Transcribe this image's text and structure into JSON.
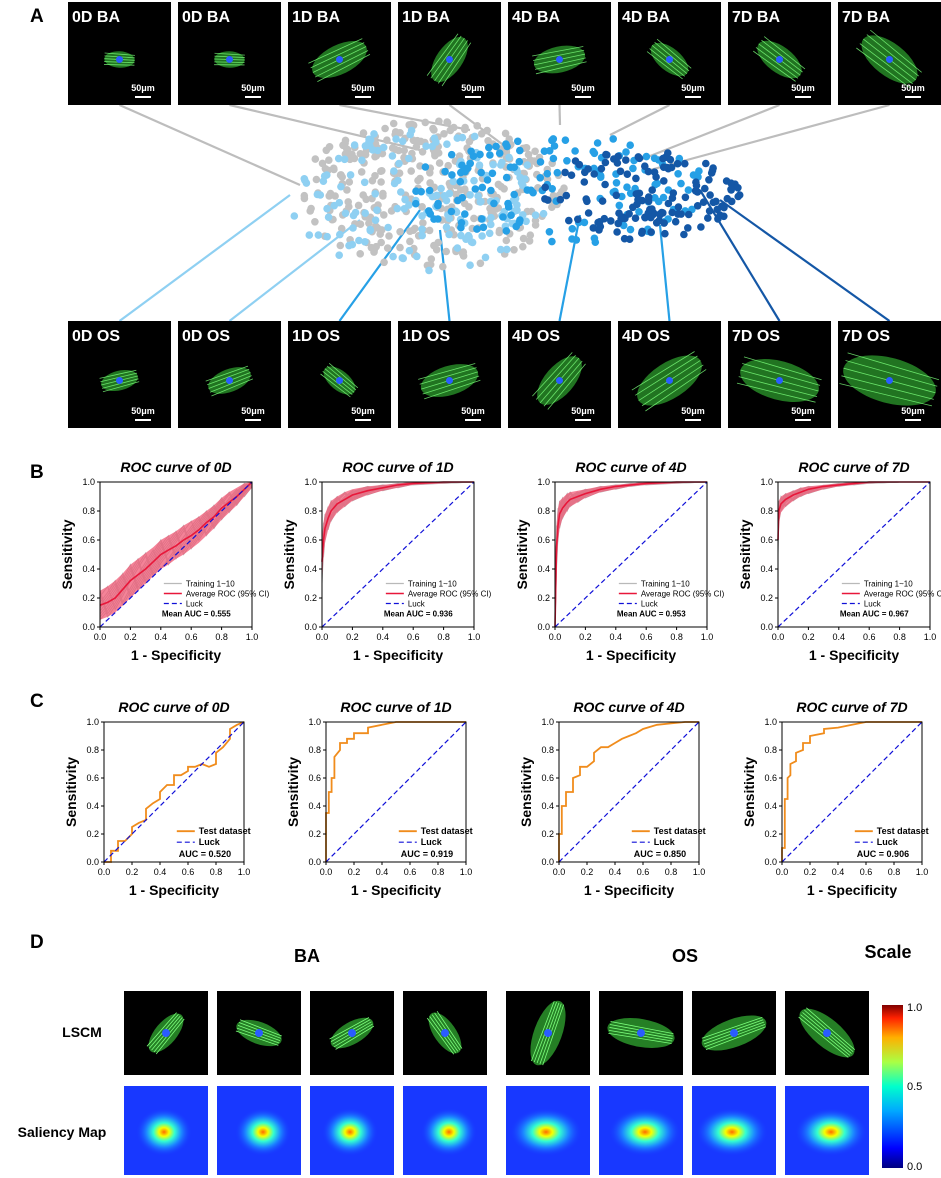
{
  "panels": {
    "a": "A",
    "b": "B",
    "c": "C",
    "d": "D"
  },
  "colors": {
    "gray": "#c2c2c2",
    "light_blue": "#8fd0f2",
    "mid_blue": "#26a0e6",
    "dark_blue": "#1457a6",
    "roc_red": "#e8173a",
    "ci_fill": "#f05a76",
    "luck": "#1010d8",
    "test_orange": "#f08c1c",
    "cell_green": "#3dd43d",
    "nucleus": "#2a5cff"
  },
  "panel_a": {
    "top_images": [
      {
        "label": "0D BA",
        "scale": "50μm"
      },
      {
        "label": "0D BA",
        "scale": "50μm"
      },
      {
        "label": "1D BA",
        "scale": "50μm"
      },
      {
        "label": "1D BA",
        "scale": "50μm"
      },
      {
        "label": "4D BA",
        "scale": "50μm"
      },
      {
        "label": "4D BA",
        "scale": "50μm"
      },
      {
        "label": "7D BA",
        "scale": "50μm"
      },
      {
        "label": "7D BA",
        "scale": "50μm"
      }
    ],
    "bottom_images": [
      {
        "label": "0D OS",
        "scale": "50μm"
      },
      {
        "label": "0D OS",
        "scale": "50μm"
      },
      {
        "label": "1D OS",
        "scale": "50μm"
      },
      {
        "label": "1D OS",
        "scale": "50μm"
      },
      {
        "label": "4D OS",
        "scale": "50μm"
      },
      {
        "label": "4D OS",
        "scale": "50μm"
      },
      {
        "label": "7D OS",
        "scale": "50μm"
      },
      {
        "label": "7D OS",
        "scale": "50μm"
      }
    ]
  },
  "chart_data": [
    {
      "panel": "B",
      "type": "line",
      "title": "ROC curve of 0D",
      "xlabel": "1 - Specificity",
      "ylabel": "Sensitivity",
      "xlim": [
        0,
        1
      ],
      "ylim": [
        0,
        1
      ],
      "ticks": [
        "0.0",
        "0.2",
        "0.4",
        "0.6",
        "0.8",
        "1.0"
      ],
      "legend": [
        "Training 1~10",
        "Average ROC (95% CI)",
        "Luck"
      ],
      "auc_text": "Mean AUC = 0.555",
      "series": [
        {
          "name": "Average ROC (95% CI)",
          "x": [
            0,
            0.05,
            0.1,
            0.15,
            0.2,
            0.25,
            0.3,
            0.35,
            0.4,
            0.45,
            0.5,
            0.55,
            0.6,
            0.65,
            0.7,
            0.75,
            0.8,
            0.85,
            0.9,
            0.95,
            1.0
          ],
          "y": [
            0.15,
            0.17,
            0.2,
            0.26,
            0.32,
            0.36,
            0.4,
            0.45,
            0.5,
            0.53,
            0.56,
            0.6,
            0.63,
            0.67,
            0.72,
            0.76,
            0.82,
            0.86,
            0.9,
            0.95,
            1.0
          ],
          "lower": [
            0.05,
            0.07,
            0.1,
            0.15,
            0.2,
            0.25,
            0.3,
            0.35,
            0.4,
            0.43,
            0.47,
            0.5,
            0.54,
            0.58,
            0.63,
            0.68,
            0.74,
            0.79,
            0.84,
            0.9,
            0.96
          ],
          "upper": [
            0.25,
            0.28,
            0.32,
            0.37,
            0.43,
            0.47,
            0.51,
            0.55,
            0.6,
            0.63,
            0.66,
            0.7,
            0.73,
            0.76,
            0.8,
            0.84,
            0.89,
            0.93,
            0.96,
            0.99,
            1.0
          ]
        }
      ]
    },
    {
      "panel": "B",
      "type": "line",
      "title": "ROC curve of 1D",
      "xlabel": "1 - Specificity",
      "ylabel": "Sensitivity",
      "xlim": [
        0,
        1
      ],
      "ylim": [
        0,
        1
      ],
      "ticks": [
        "0.0",
        "0.2",
        "0.4",
        "0.6",
        "0.8",
        "1.0"
      ],
      "legend": [
        "Training 1~10",
        "Average ROC (95% CI)",
        "Luck"
      ],
      "auc_text": "Mean AUC = 0.936",
      "series": [
        {
          "name": "Average ROC (95% CI)",
          "x": [
            0,
            0.01,
            0.02,
            0.04,
            0.06,
            0.1,
            0.15,
            0.2,
            0.3,
            0.4,
            0.5,
            0.6,
            0.8,
            1.0
          ],
          "y": [
            0.45,
            0.6,
            0.68,
            0.75,
            0.8,
            0.85,
            0.88,
            0.91,
            0.94,
            0.96,
            0.98,
            0.99,
            1.0,
            1.0
          ],
          "lower": [
            0.3,
            0.48,
            0.58,
            0.67,
            0.73,
            0.79,
            0.83,
            0.87,
            0.91,
            0.94,
            0.96,
            0.98,
            0.99,
            1.0
          ],
          "upper": [
            0.6,
            0.72,
            0.78,
            0.83,
            0.87,
            0.9,
            0.93,
            0.95,
            0.97,
            0.98,
            0.99,
            1.0,
            1.0,
            1.0
          ]
        }
      ]
    },
    {
      "panel": "B",
      "type": "line",
      "title": "ROC curve of 4D",
      "xlabel": "1 - Specificity",
      "ylabel": "Sensitivity",
      "xlim": [
        0,
        1
      ],
      "ylim": [
        0,
        1
      ],
      "ticks": [
        "0.0",
        "0.2",
        "0.4",
        "0.6",
        "0.8",
        "1.0"
      ],
      "legend": [
        "Training 1~10",
        "Average ROC (95% CI)",
        "Luck"
      ],
      "auc_text": "Mean AUC = 0.953",
      "series": [
        {
          "name": "Average ROC (95% CI)",
          "x": [
            0,
            0.01,
            0.02,
            0.03,
            0.05,
            0.08,
            0.1,
            0.15,
            0.2,
            0.3,
            0.4,
            0.5,
            0.6,
            0.8,
            1.0
          ],
          "y": [
            0.0,
            0.55,
            0.7,
            0.78,
            0.82,
            0.86,
            0.88,
            0.9,
            0.92,
            0.95,
            0.97,
            0.98,
            0.99,
            1.0,
            1.0
          ],
          "lower": [
            0.0,
            0.4,
            0.58,
            0.68,
            0.75,
            0.8,
            0.83,
            0.86,
            0.89,
            0.93,
            0.95,
            0.97,
            0.98,
            0.99,
            1.0
          ],
          "upper": [
            0.0,
            0.7,
            0.82,
            0.87,
            0.89,
            0.92,
            0.93,
            0.94,
            0.95,
            0.97,
            0.98,
            0.99,
            1.0,
            1.0,
            1.0
          ]
        }
      ]
    },
    {
      "panel": "B",
      "type": "line",
      "title": "ROC curve of 7D",
      "xlabel": "1 - Specificity",
      "ylabel": "Sensitivity",
      "xlim": [
        0,
        1
      ],
      "ylim": [
        0,
        1
      ],
      "ticks": [
        "0.0",
        "0.2",
        "0.4",
        "0.6",
        "0.8",
        "1.0"
      ],
      "legend": [
        "Training 1~10",
        "Average ROC (95% CI)",
        "Luck"
      ],
      "auc_text": "Mean AUC = 0.967",
      "series": [
        {
          "name": "Average ROC (95% CI)",
          "x": [
            0,
            0.005,
            0.02,
            0.05,
            0.1,
            0.15,
            0.2,
            0.3,
            0.4,
            0.5,
            0.6,
            0.8,
            1.0
          ],
          "y": [
            0.6,
            0.8,
            0.85,
            0.88,
            0.91,
            0.93,
            0.95,
            0.97,
            0.98,
            0.99,
            1.0,
            1.0,
            1.0
          ],
          "lower": [
            0.5,
            0.72,
            0.79,
            0.83,
            0.87,
            0.9,
            0.92,
            0.95,
            0.97,
            0.98,
            0.99,
            1.0,
            1.0
          ],
          "upper": [
            0.72,
            0.87,
            0.9,
            0.92,
            0.94,
            0.96,
            0.97,
            0.98,
            0.99,
            1.0,
            1.0,
            1.0,
            1.0
          ]
        }
      ]
    },
    {
      "panel": "C",
      "type": "line",
      "title": "ROC curve of 0D",
      "xlabel": "1 - Specificity",
      "ylabel": "Sensitivity",
      "xlim": [
        0,
        1
      ],
      "ylim": [
        0,
        1
      ],
      "ticks": [
        "0.0",
        "0.2",
        "0.4",
        "0.6",
        "0.8",
        "1.0"
      ],
      "legend": [
        "Test dataset",
        "Luck"
      ],
      "auc_text": "AUC = 0.520",
      "series": [
        {
          "name": "Test dataset",
          "x": [
            0,
            0.05,
            0.05,
            0.1,
            0.1,
            0.15,
            0.2,
            0.2,
            0.25,
            0.3,
            0.3,
            0.35,
            0.4,
            0.4,
            0.45,
            0.5,
            0.5,
            0.55,
            0.6,
            0.6,
            0.65,
            0.7,
            0.75,
            0.8,
            0.8,
            0.85,
            0.9,
            0.9,
            0.95,
            1.0
          ],
          "y": [
            0,
            0,
            0.08,
            0.08,
            0.15,
            0.15,
            0.2,
            0.25,
            0.28,
            0.3,
            0.38,
            0.42,
            0.45,
            0.5,
            0.55,
            0.55,
            0.62,
            0.62,
            0.65,
            0.68,
            0.68,
            0.7,
            0.68,
            0.7,
            0.78,
            0.82,
            0.88,
            0.95,
            0.98,
            1.0
          ]
        }
      ]
    },
    {
      "panel": "C",
      "type": "line",
      "title": "ROC curve of 1D",
      "xlabel": "1 - Specificity",
      "ylabel": "Sensitivity",
      "xlim": [
        0,
        1
      ],
      "ylim": [
        0,
        1
      ],
      "ticks": [
        "0.0",
        "0.2",
        "0.4",
        "0.6",
        "0.8",
        "1.0"
      ],
      "legend": [
        "Test dataset",
        "Luck"
      ],
      "auc_text": "AUC = 0.919",
      "series": [
        {
          "name": "Test dataset",
          "x": [
            0,
            0.0,
            0.02,
            0.02,
            0.04,
            0.04,
            0.06,
            0.06,
            0.1,
            0.1,
            0.15,
            0.15,
            0.2,
            0.2,
            0.3,
            0.3,
            0.4,
            0.5,
            0.6,
            1.0
          ],
          "y": [
            0,
            0.35,
            0.35,
            0.5,
            0.5,
            0.6,
            0.6,
            0.75,
            0.8,
            0.85,
            0.85,
            0.88,
            0.88,
            0.92,
            0.92,
            0.96,
            0.98,
            1.0,
            1.0,
            1.0
          ]
        }
      ]
    },
    {
      "panel": "C",
      "type": "line",
      "title": "ROC curve of 4D",
      "xlabel": "1 - Specificity",
      "ylabel": "Sensitivity",
      "xlim": [
        0,
        1
      ],
      "ylim": [
        0,
        1
      ],
      "ticks": [
        "0.0",
        "0.2",
        "0.4",
        "0.6",
        "0.8",
        "1.0"
      ],
      "legend": [
        "Test dataset",
        "Luck"
      ],
      "auc_text": "AUC = 0.850",
      "series": [
        {
          "name": "Test dataset",
          "x": [
            0,
            0,
            0.02,
            0.02,
            0.05,
            0.05,
            0.1,
            0.1,
            0.15,
            0.15,
            0.2,
            0.25,
            0.25,
            0.3,
            0.35,
            0.4,
            0.45,
            0.5,
            0.55,
            0.6,
            0.7,
            0.8,
            0.9,
            1.0
          ],
          "y": [
            0,
            0.2,
            0.2,
            0.4,
            0.4,
            0.5,
            0.5,
            0.6,
            0.62,
            0.68,
            0.68,
            0.72,
            0.78,
            0.82,
            0.82,
            0.85,
            0.88,
            0.9,
            0.92,
            0.95,
            0.98,
            0.99,
            1.0,
            1.0
          ]
        }
      ]
    },
    {
      "panel": "C",
      "type": "line",
      "title": "ROC curve of 7D",
      "xlabel": "1 - Specificity",
      "ylabel": "Sensitivity",
      "xlim": [
        0,
        1
      ],
      "ylim": [
        0,
        1
      ],
      "ticks": [
        "0.0",
        "0.2",
        "0.4",
        "0.6",
        "0.8",
        "1.0"
      ],
      "legend": [
        "Test dataset",
        "Luck"
      ],
      "auc_text": "AUC = 0.906",
      "series": [
        {
          "name": "Test dataset",
          "x": [
            0,
            0,
            0.02,
            0.02,
            0.04,
            0.04,
            0.06,
            0.06,
            0.1,
            0.1,
            0.15,
            0.15,
            0.2,
            0.2,
            0.3,
            0.3,
            0.4,
            0.5,
            0.6,
            0.7,
            1.0
          ],
          "y": [
            0,
            0.1,
            0.1,
            0.45,
            0.45,
            0.6,
            0.62,
            0.7,
            0.72,
            0.78,
            0.8,
            0.85,
            0.85,
            0.9,
            0.92,
            0.95,
            0.96,
            0.98,
            1.0,
            1.0,
            1.0
          ]
        }
      ]
    }
  ],
  "panel_d": {
    "group_ba": "BA",
    "group_os": "OS",
    "scale_title": "Scale",
    "row_lscm": "LSCM",
    "row_saliency": "Saliency Map",
    "scale_ticks": [
      "1.0",
      "0.5",
      "0.0"
    ]
  }
}
